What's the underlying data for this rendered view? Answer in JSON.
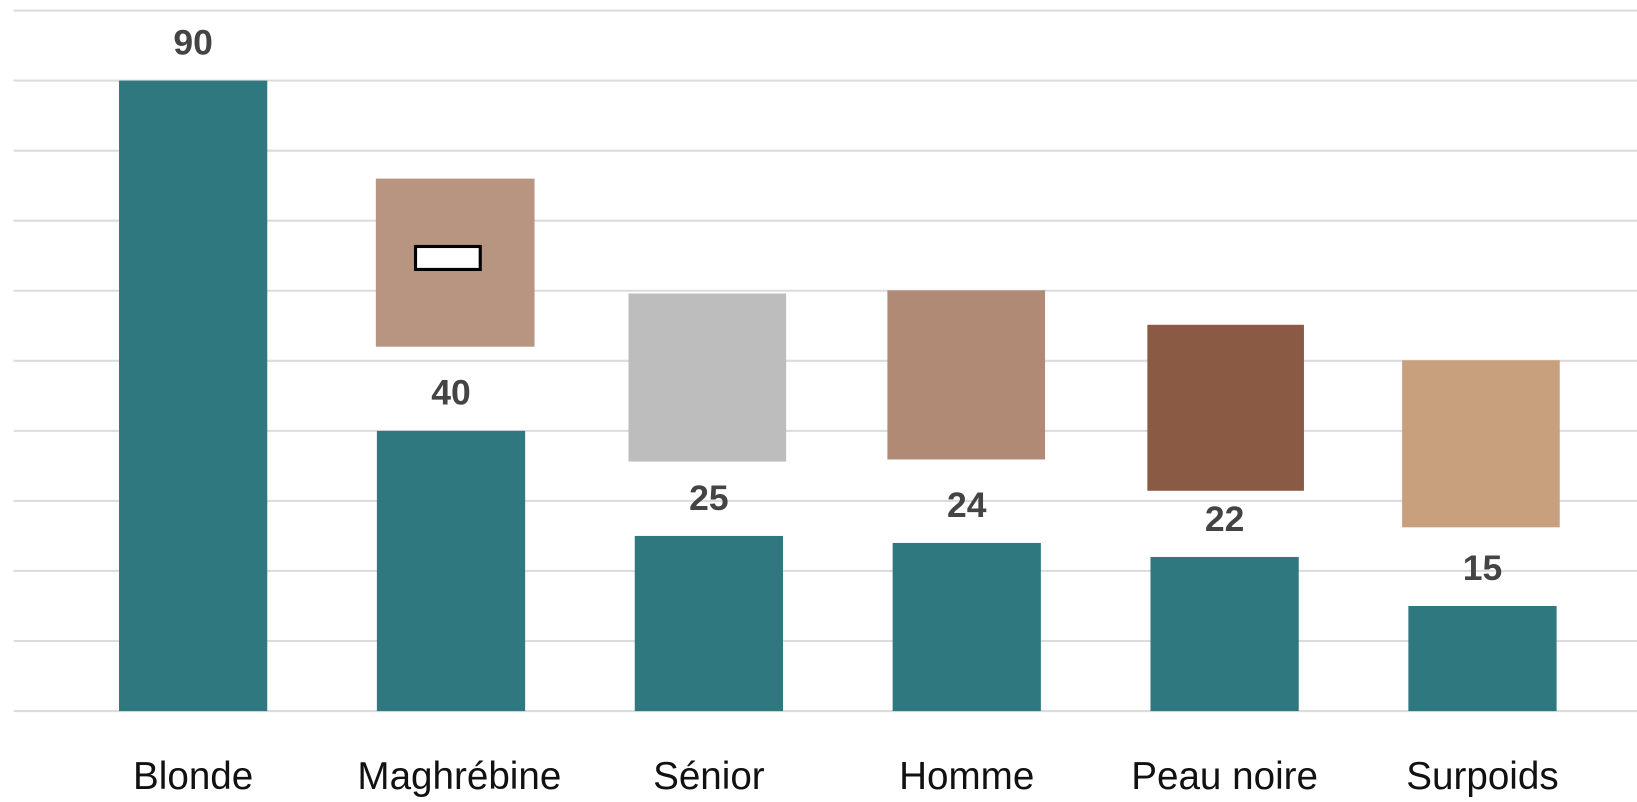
{
  "chart_data": {
    "type": "bar",
    "categories": [
      "Blonde",
      "Maghrébine",
      "Sénior",
      "Homme",
      "Peau noire",
      "Surpoids"
    ],
    "values": [
      90,
      40,
      25,
      24,
      22,
      15
    ],
    "color": "#2f7880",
    "ylim": [
      0,
      100
    ],
    "yticks": [
      0,
      10,
      20,
      30,
      40,
      50,
      60,
      70,
      80,
      90,
      100
    ],
    "grid": true
  }
}
